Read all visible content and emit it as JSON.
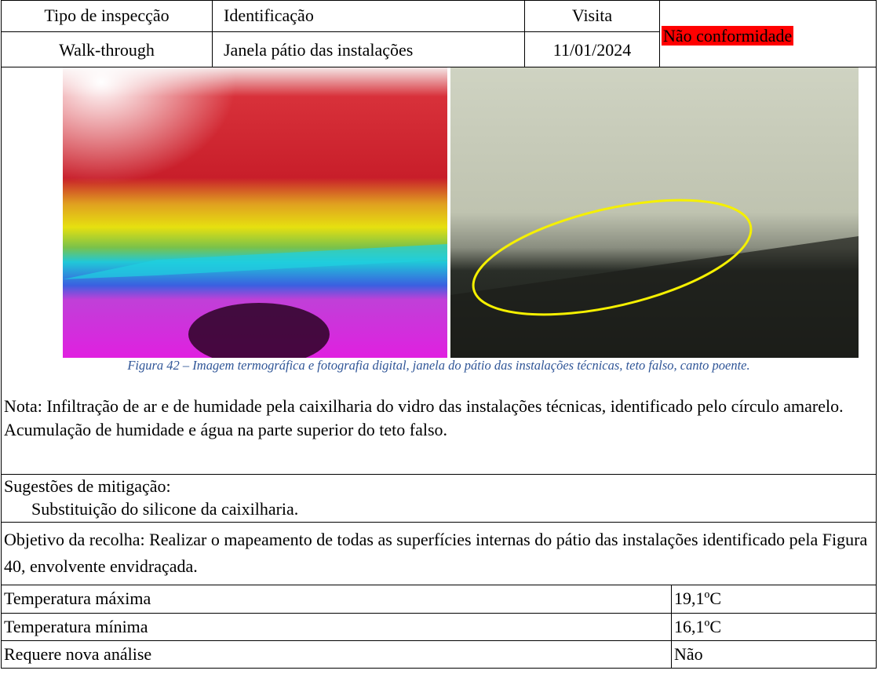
{
  "header": {
    "columns": [
      "Tipo de inspecção",
      "Identificação",
      "Visita"
    ],
    "values": [
      "Walk-through",
      "Janela pátio das instalações",
      "11/01/2024"
    ],
    "status": "Não conformidade"
  },
  "figure": {
    "caption": "Figura 42 – Imagem termográfica e fotografia digital, janela do pátio das instalações técnicas, teto falso, canto poente."
  },
  "note": {
    "paragraphs": [
      "Nota: Infiltração de ar e de humidade pela caixilharia do vidro das instalações técnicas, identificado pelo círculo amarelo.",
      "Acumulação de humidade e água na parte superior do teto falso."
    ]
  },
  "mitigation": {
    "label": "Sugestões de mitigação:",
    "items": [
      "Substituição do silicone da caixilharia."
    ]
  },
  "objective": "Objetivo da recolha: Realizar o mapeamento de todas as superfícies internas do pátio das instalações identificado pela Figura 40, envolvente envidraçada.",
  "measurements": [
    [
      "Temperatura máxima",
      "19,1ºC"
    ],
    [
      "Temperatura mínima",
      "16,1ºC"
    ],
    [
      "Requere nova análise",
      "Não"
    ]
  ]
}
